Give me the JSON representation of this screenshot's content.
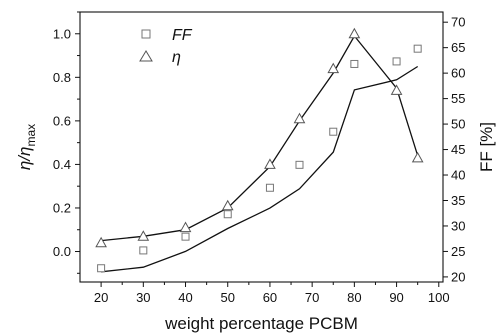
{
  "chart_data": {
    "type": "scatter",
    "xlabel": "weight percentage PCBM",
    "ylabel_left_main": "η/η",
    "ylabel_left_sub": "max",
    "ylabel_right": "FF [%]",
    "xlim": [
      15,
      101
    ],
    "ylim_left": [
      -0.14,
      1.1
    ],
    "ylim_right": [
      19,
      72
    ],
    "xticks": [
      20,
      30,
      40,
      50,
      60,
      70,
      80,
      90,
      100
    ],
    "yticks_left": [
      0.0,
      0.2,
      0.4,
      0.6,
      0.8,
      1.0
    ],
    "yticks_left_labels": [
      "0.0",
      "0.2",
      "0.4",
      "0.6",
      "0.8",
      "1.0"
    ],
    "yticks_right": [
      20,
      25,
      30,
      35,
      40,
      45,
      50,
      55,
      60,
      65,
      70
    ],
    "legend": {
      "position": "top-left",
      "entries": [
        {
          "label": "FF",
          "marker": "square"
        },
        {
          "label": "η",
          "marker": "triangle"
        }
      ]
    },
    "series": [
      {
        "name": "FF",
        "axis": "right",
        "marker": "square",
        "x": [
          20,
          30,
          40,
          50,
          60,
          67,
          75,
          80,
          90,
          95
        ],
        "y": [
          21.7,
          25.2,
          27.9,
          32.3,
          37.5,
          42.0,
          48.5,
          61.8,
          62.3,
          64.8
        ]
      },
      {
        "name": "η",
        "axis": "left",
        "marker": "triangle",
        "x": [
          20,
          30,
          40,
          50,
          60,
          67,
          75,
          80,
          90,
          95
        ],
        "y": [
          0.04,
          0.07,
          0.11,
          0.21,
          0.4,
          0.61,
          0.84,
          1.0,
          0.74,
          0.43
        ]
      }
    ],
    "fit_lines": [
      {
        "axis": "right",
        "x": [
          20,
          30,
          40,
          50,
          60,
          67,
          75,
          80,
          90,
          95
        ],
        "y": [
          21.0,
          21.9,
          25.0,
          29.5,
          33.5,
          37.3,
          44.5,
          56.7,
          58.7,
          61.3
        ]
      },
      {
        "axis": "left",
        "x": [
          20,
          30,
          40,
          50,
          60,
          67,
          75,
          80,
          90,
          95
        ],
        "y": [
          0.05,
          0.07,
          0.1,
          0.2,
          0.39,
          0.6,
          0.82,
          0.99,
          0.75,
          0.44
        ]
      }
    ]
  }
}
